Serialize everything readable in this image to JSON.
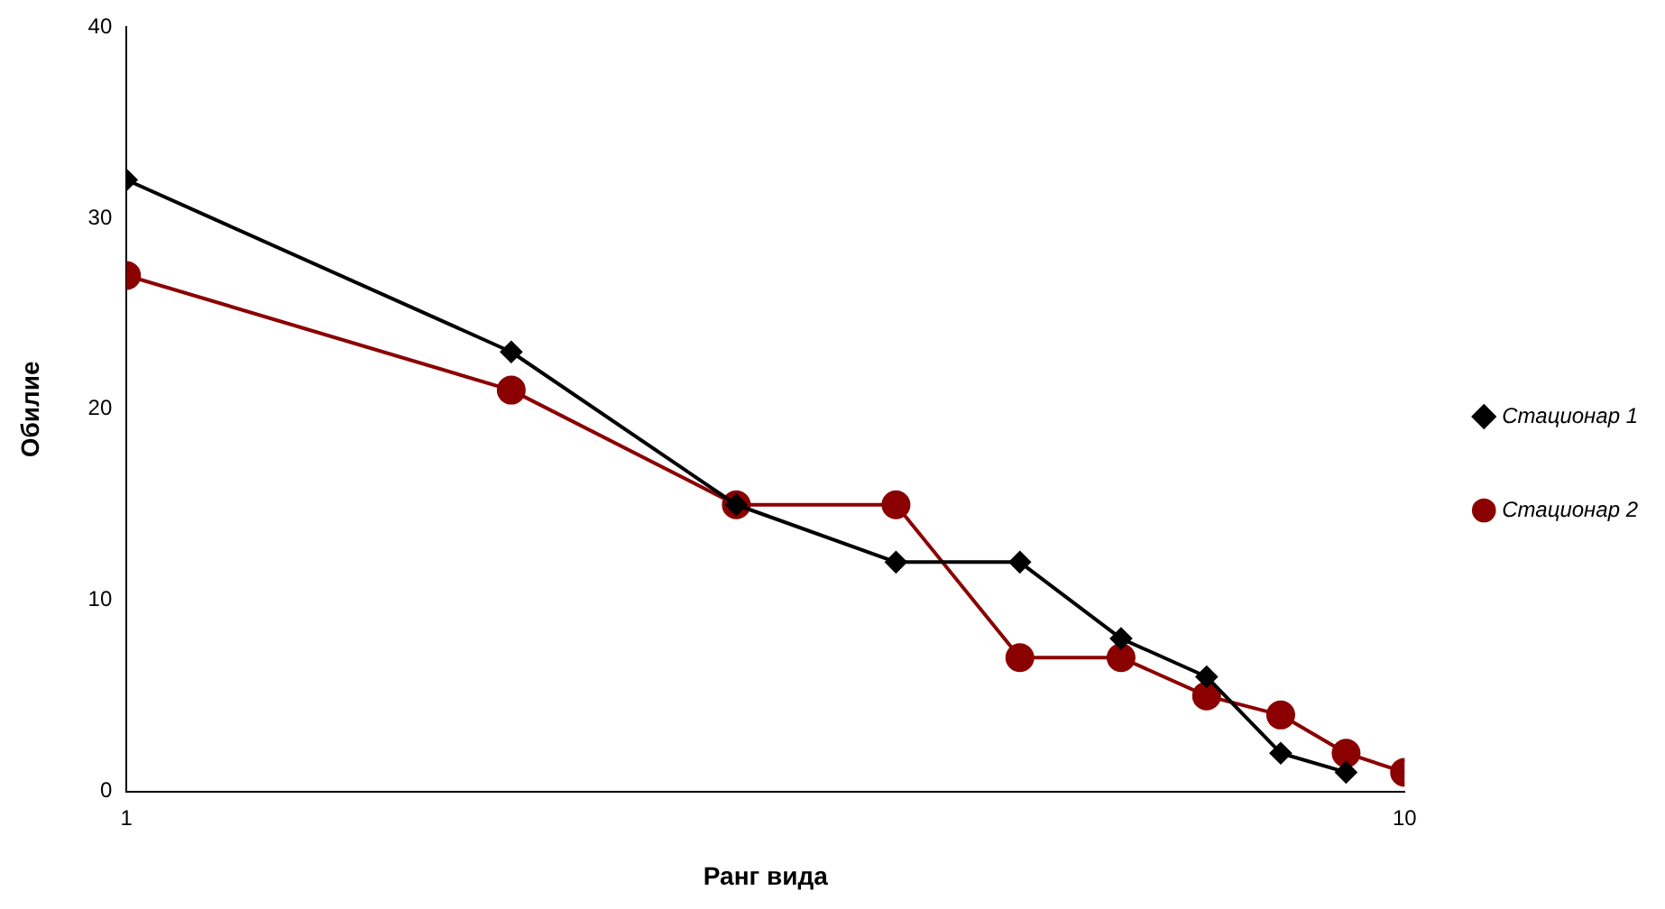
{
  "chart_data": {
    "type": "line",
    "xlabel": "Ранг вида",
    "ylabel": "Обилие",
    "log": "x",
    "xlim": [
      1,
      10
    ],
    "xticks": [
      1,
      10
    ],
    "ylim": [
      0,
      40
    ],
    "yticks": [
      0,
      10,
      20,
      30,
      40
    ],
    "grid": false,
    "legend": "right",
    "series": [
      {
        "name": "Стационар 1",
        "color": "#000000",
        "marker": "diamond",
        "x": [
          1,
          2,
          3,
          4,
          5,
          6,
          7,
          8,
          9
        ],
        "values": [
          32,
          23,
          15,
          12,
          12,
          8,
          6,
          2,
          1
        ]
      },
      {
        "name": "Стационар 2",
        "color": "#8b0000",
        "marker": "circle",
        "x": [
          1,
          2,
          3,
          4,
          5,
          6,
          7,
          8,
          9,
          10
        ],
        "values": [
          27,
          21,
          15,
          15,
          7,
          7,
          5,
          4,
          2,
          1
        ]
      }
    ]
  }
}
